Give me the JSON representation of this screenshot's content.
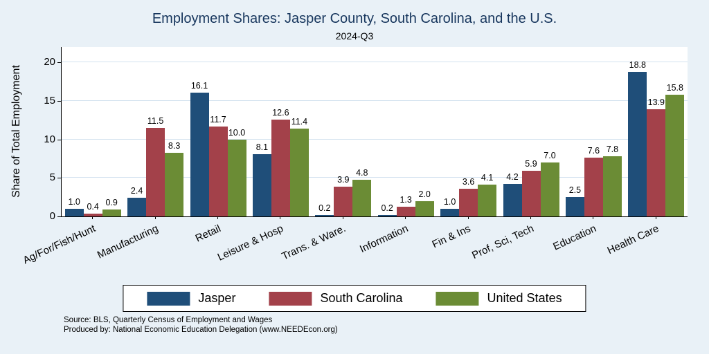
{
  "header": {
    "title": "Employment Shares: Jasper County, South Carolina, and the U.S.",
    "subtitle": "2024-Q3"
  },
  "chart_data": {
    "type": "bar",
    "title": "Employment Shares: Jasper County, South Carolina, and the U.S.",
    "subtitle": "2024-Q3",
    "ylabel": "Share of Total Employment",
    "xlabel": "",
    "grid": true,
    "legend_position": "bottom",
    "yticks": [
      0,
      5,
      10,
      15,
      20
    ],
    "ylim": [
      0,
      22
    ],
    "categories": [
      "Ag/For/Fish/Hunt",
      "Manufacturing",
      "Retail",
      "Leisure & Hosp",
      "Trans. & Ware.",
      "Information",
      "Fin & Ins",
      "Prof, Sci, Tech",
      "Education",
      "Health Care"
    ],
    "series": [
      {
        "name": "Jasper",
        "color": "#1f4e79",
        "values": [
          1.0,
          2.4,
          16.1,
          8.1,
          0.2,
          0.2,
          1.0,
          4.2,
          2.5,
          18.8
        ]
      },
      {
        "name": "South Carolina",
        "color": "#a3414a",
        "values": [
          0.4,
          11.5,
          11.7,
          12.6,
          3.9,
          1.3,
          3.6,
          5.9,
          7.6,
          13.9
        ]
      },
      {
        "name": "United States",
        "color": "#6b8c35",
        "values": [
          0.9,
          8.3,
          10.0,
          11.4,
          4.8,
          2.0,
          4.1,
          7.0,
          7.8,
          15.8
        ]
      }
    ]
  },
  "footer": {
    "source": "Source: BLS, Quarterly Census of Employment and Wages",
    "produced_by": "Produced by: National Economic Education Delegation (www.NEEDEcon.org)"
  }
}
